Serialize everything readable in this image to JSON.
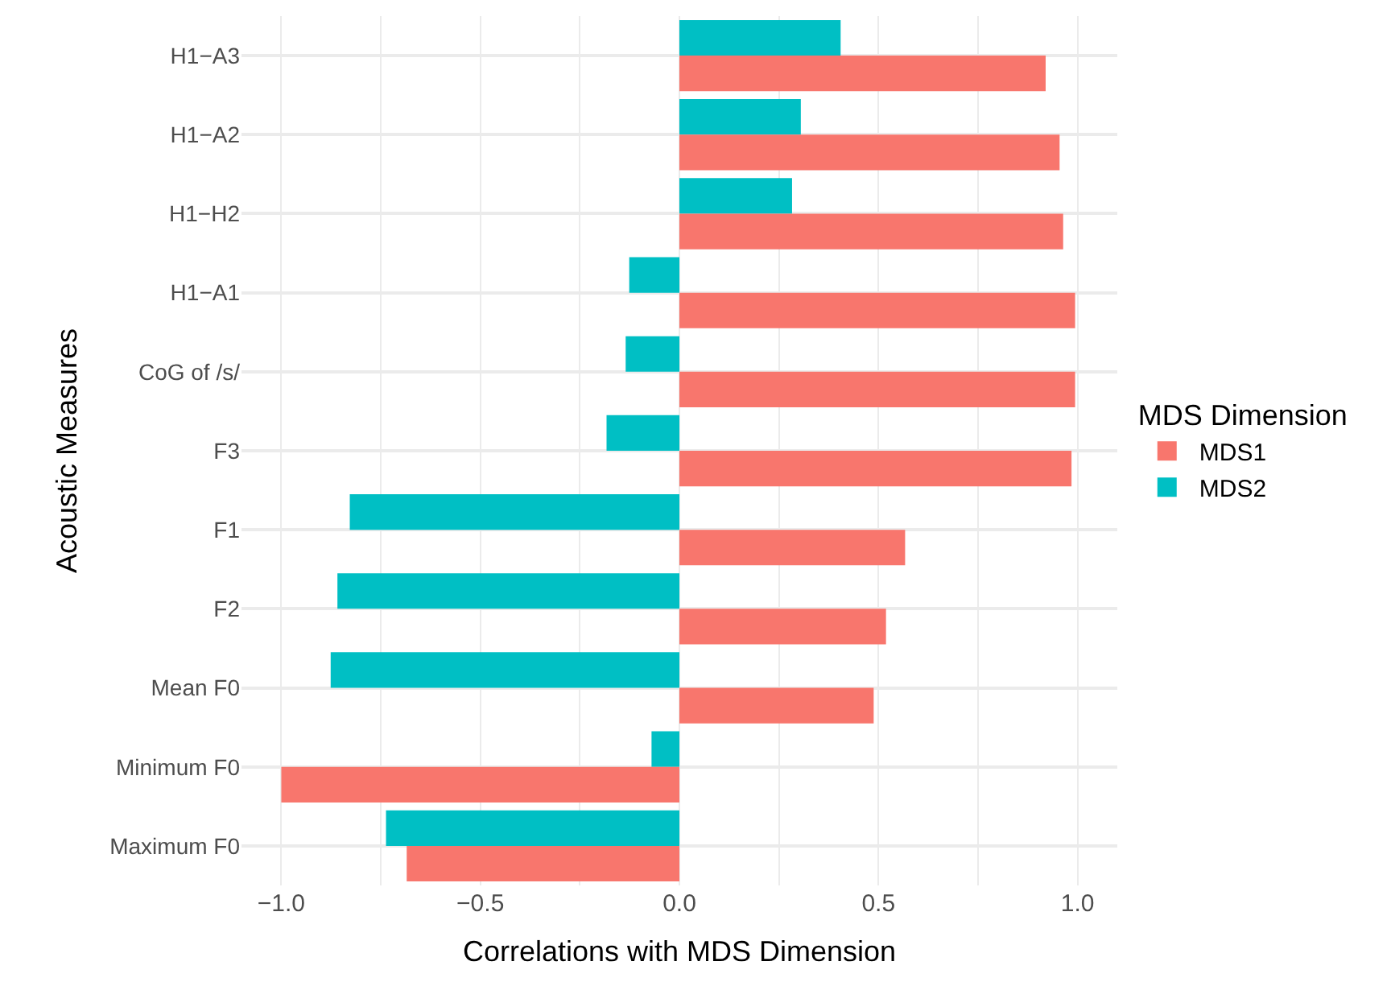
{
  "chart_data": {
    "type": "bar",
    "orientation": "horizontal",
    "xlabel": "Correlations with MDS Dimension",
    "ylabel": "Acoustic Measures",
    "legend_title": "MDS Dimension",
    "categories": [
      "H1−A3",
      "H1−A2",
      "H1−H2",
      "H1−A1",
      "CoG of /s/",
      "F3",
      "F1",
      "F2",
      "Mean F0",
      "Minimum F0",
      "Maximum F0"
    ],
    "series": [
      {
        "name": "MDS1",
        "color": "#f8766d",
        "values": [
          0.92,
          0.955,
          0.964,
          0.994,
          0.994,
          0.985,
          0.567,
          0.519,
          0.488,
          -1.0,
          -0.685
        ]
      },
      {
        "name": "MDS2",
        "color": "#00bfc4",
        "values": [
          0.405,
          0.305,
          0.283,
          -0.126,
          -0.135,
          -0.183,
          -0.828,
          -0.859,
          -0.876,
          -0.07,
          -0.737
        ]
      }
    ],
    "xlim": [
      -1.1,
      1.1
    ],
    "xticks": [
      {
        "value": -1.0,
        "label": "−1.0"
      },
      {
        "value": -0.75,
        "label": null
      },
      {
        "value": -0.5,
        "label": "−0.5"
      },
      {
        "value": -0.25,
        "label": null
      },
      {
        "value": 0.0,
        "label": "0.0"
      },
      {
        "value": 0.25,
        "label": null
      },
      {
        "value": 0.5,
        "label": "0.5"
      },
      {
        "value": 0.75,
        "label": null
      },
      {
        "value": 1.0,
        "label": "1.0"
      }
    ],
    "grid": true,
    "legend": "right"
  }
}
